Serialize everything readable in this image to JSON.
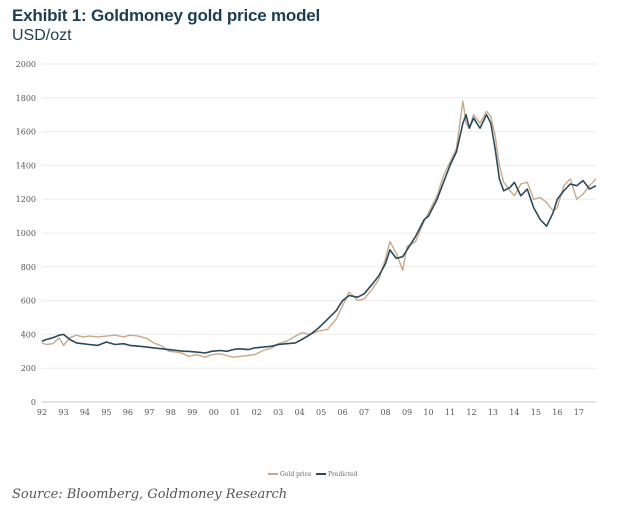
{
  "header": {
    "title": "Exhibit 1: Goldmoney gold price model",
    "subtitle": "USD/ozt"
  },
  "footer": {
    "source": "Source: Bloomberg, Goldmoney Research"
  },
  "chart_data": {
    "type": "line",
    "title": "Exhibit 1: Goldmoney gold price model",
    "ylabel": "USD/ozt",
    "xlabel": "",
    "ylim": [
      0,
      2000
    ],
    "yticks": [
      0,
      200,
      400,
      600,
      800,
      1000,
      1200,
      1400,
      1600,
      1800,
      2000
    ],
    "xlim": [
      1992.0,
      2017.8
    ],
    "xticks": [
      "92",
      "93",
      "94",
      "95",
      "96",
      "97",
      "98",
      "99",
      "00",
      "01",
      "02",
      "03",
      "04",
      "05",
      "06",
      "07",
      "08",
      "09",
      "10",
      "11",
      "12",
      "13",
      "14",
      "15",
      "16",
      "17"
    ],
    "grid": true,
    "legend_position": "bottom-center",
    "series": [
      {
        "name": "Gold price",
        "color": "#c8a98a",
        "x": [
          1992.0,
          1992.2,
          1992.5,
          1992.8,
          1993.0,
          1993.3,
          1993.6,
          1993.9,
          1994.2,
          1994.6,
          1995.0,
          1995.4,
          1995.8,
          1996.1,
          1996.5,
          1996.9,
          1997.2,
          1997.6,
          1997.9,
          1998.3,
          1998.6,
          1998.8,
          1999.2,
          1999.6,
          1999.9,
          2000.3,
          2000.6,
          2000.9,
          2001.2,
          2001.6,
          2001.9,
          2002.3,
          2002.7,
          2003.0,
          2003.4,
          2003.8,
          2004.1,
          2004.5,
          2004.9,
          2005.3,
          2005.7,
          2006.0,
          2006.3,
          2006.7,
          2007.0,
          2007.4,
          2007.7,
          2008.0,
          2008.2,
          2008.5,
          2008.8,
          2009.0,
          2009.4,
          2009.8,
          2010.0,
          2010.4,
          2010.7,
          2011.0,
          2011.3,
          2011.6,
          2011.75,
          2011.9,
          2012.1,
          2012.4,
          2012.7,
          2012.9,
          2013.1,
          2013.3,
          2013.5,
          2013.8,
          2014.0,
          2014.3,
          2014.6,
          2014.9,
          2015.2,
          2015.5,
          2015.8,
          2016.0,
          2016.3,
          2016.6,
          2016.9,
          2017.2,
          2017.5,
          2017.8
        ],
        "values": [
          350,
          340,
          345,
          380,
          335,
          380,
          395,
          385,
          390,
          385,
          390,
          395,
          385,
          395,
          390,
          375,
          350,
          330,
          300,
          295,
          285,
          270,
          280,
          265,
          280,
          285,
          275,
          265,
          270,
          275,
          280,
          305,
          320,
          345,
          360,
          390,
          410,
          400,
          420,
          430,
          490,
          570,
          650,
          600,
          610,
          670,
          730,
          850,
          950,
          880,
          780,
          920,
          950,
          1070,
          1120,
          1220,
          1340,
          1420,
          1500,
          1780,
          1650,
          1620,
          1700,
          1650,
          1720,
          1690,
          1580,
          1400,
          1300,
          1250,
          1220,
          1290,
          1300,
          1200,
          1210,
          1180,
          1130,
          1150,
          1280,
          1320,
          1200,
          1230,
          1280,
          1320
        ]
      },
      {
        "name": "Predicted",
        "color": "#2a4a5c",
        "x": [
          1992.0,
          1992.2,
          1992.5,
          1992.8,
          1993.0,
          1993.3,
          1993.6,
          1993.9,
          1994.2,
          1994.6,
          1995.0,
          1995.4,
          1995.8,
          1996.1,
          1996.5,
          1996.9,
          1997.2,
          1997.6,
          1997.9,
          1998.3,
          1998.6,
          1998.8,
          1999.2,
          1999.6,
          1999.9,
          2000.3,
          2000.6,
          2000.9,
          2001.2,
          2001.6,
          2001.9,
          2002.3,
          2002.7,
          2003.0,
          2003.4,
          2003.8,
          2004.1,
          2004.5,
          2004.9,
          2005.3,
          2005.7,
          2006.0,
          2006.3,
          2006.7,
          2007.0,
          2007.4,
          2007.7,
          2008.0,
          2008.2,
          2008.5,
          2008.8,
          2009.0,
          2009.4,
          2009.8,
          2010.0,
          2010.4,
          2010.7,
          2011.0,
          2011.3,
          2011.6,
          2011.75,
          2011.9,
          2012.1,
          2012.4,
          2012.7,
          2012.9,
          2013.1,
          2013.3,
          2013.5,
          2013.8,
          2014.0,
          2014.3,
          2014.6,
          2014.9,
          2015.2,
          2015.5,
          2015.8,
          2016.0,
          2016.3,
          2016.6,
          2016.9,
          2017.2,
          2017.5,
          2017.8
        ],
        "values": [
          360,
          370,
          380,
          395,
          400,
          370,
          350,
          345,
          340,
          335,
          355,
          340,
          345,
          335,
          330,
          325,
          320,
          315,
          310,
          305,
          300,
          300,
          295,
          290,
          300,
          305,
          300,
          310,
          315,
          310,
          320,
          325,
          330,
          340,
          345,
          350,
          370,
          400,
          440,
          490,
          540,
          600,
          630,
          620,
          640,
          700,
          750,
          820,
          900,
          850,
          860,
          900,
          980,
          1080,
          1100,
          1200,
          1300,
          1400,
          1480,
          1650,
          1700,
          1620,
          1680,
          1620,
          1700,
          1650,
          1500,
          1320,
          1250,
          1270,
          1300,
          1220,
          1260,
          1150,
          1080,
          1040,
          1120,
          1200,
          1250,
          1290,
          1280,
          1310,
          1260,
          1280
        ]
      }
    ]
  }
}
